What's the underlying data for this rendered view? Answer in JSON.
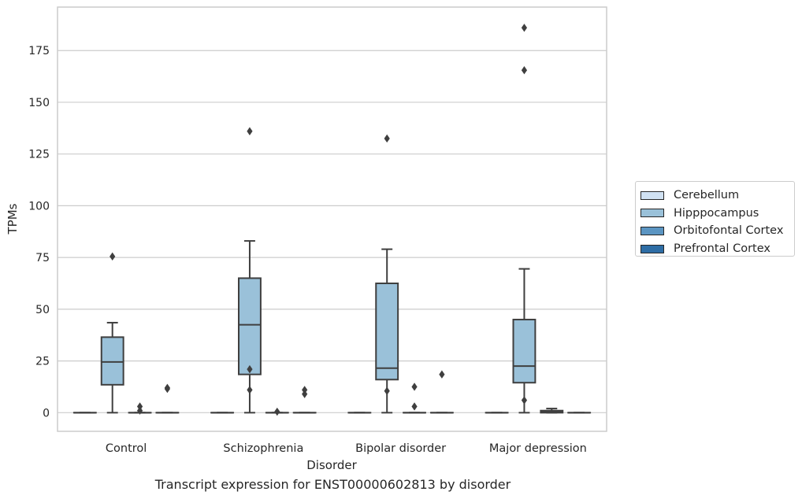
{
  "chart_data": {
    "type": "box",
    "xlabel": "Disorder",
    "ylabel": "TPMs",
    "caption": "Transcript expression for ENST00000602813 by disorder",
    "ylim": [
      -9,
      196
    ],
    "yticks": [
      0,
      25,
      50,
      75,
      100,
      125,
      150,
      175
    ],
    "grid": "horizontal",
    "legend_position": "right",
    "categories": [
      "Control",
      "Schizophrenia",
      "Bipolar disorder",
      "Major depression"
    ],
    "series": [
      {
        "name": "Cerebellum",
        "color": "#d0e1f2",
        "boxes": [
          {
            "q1": 0,
            "median": 0,
            "q3": 0,
            "whisker_low": 0,
            "whisker_high": 0,
            "outliers": []
          },
          {
            "q1": 0,
            "median": 0,
            "q3": 0,
            "whisker_low": 0,
            "whisker_high": 0,
            "outliers": []
          },
          {
            "q1": 0,
            "median": 0,
            "q3": 0,
            "whisker_low": 0,
            "whisker_high": 0,
            "outliers": []
          },
          {
            "q1": 0,
            "median": 0,
            "q3": 0,
            "whisker_low": 0,
            "whisker_high": 0,
            "outliers": []
          }
        ]
      },
      {
        "name": "Hipppocampus",
        "color": "#9ac1d9",
        "boxes": [
          {
            "q1": 13.5,
            "median": 24.5,
            "q3": 36.5,
            "whisker_low": 0,
            "whisker_high": 43.5,
            "outliers": [
              75.5
            ]
          },
          {
            "q1": 18.5,
            "median": 42.5,
            "q3": 65,
            "whisker_low": 0,
            "whisker_high": 83,
            "outliers": [
              21,
              11,
              136
            ]
          },
          {
            "q1": 16,
            "median": 21.5,
            "q3": 62.5,
            "whisker_low": 0,
            "whisker_high": 79,
            "outliers": [
              10.5,
              132.5
            ]
          },
          {
            "q1": 14.5,
            "median": 22.5,
            "q3": 45,
            "whisker_low": 0,
            "whisker_high": 69.5,
            "outliers": [
              6,
              165.5,
              186
            ]
          }
        ]
      },
      {
        "name": "Orbitofontal Cortex",
        "color": "#5b95c2",
        "boxes": [
          {
            "q1": 0,
            "median": 0,
            "q3": 0,
            "whisker_low": 0,
            "whisker_high": 0,
            "outliers": [
              3,
              1
            ]
          },
          {
            "q1": 0,
            "median": 0,
            "q3": 0,
            "whisker_low": 0,
            "whisker_high": 0,
            "outliers": [
              0.5
            ]
          },
          {
            "q1": 0,
            "median": 0,
            "q3": 0,
            "whisker_low": 0,
            "whisker_high": 0,
            "outliers": [
              12.5,
              3
            ]
          },
          {
            "q1": 0,
            "median": 0.5,
            "q3": 1,
            "whisker_low": 0,
            "whisker_high": 2,
            "outliers": []
          }
        ]
      },
      {
        "name": "Prefrontal Cortex",
        "color": "#2e6da5",
        "boxes": [
          {
            "q1": 0,
            "median": 0,
            "q3": 0,
            "whisker_low": 0,
            "whisker_high": 0,
            "outliers": [
              12,
              11.5
            ]
          },
          {
            "q1": 0,
            "median": 0,
            "q3": 0,
            "whisker_low": 0,
            "whisker_high": 0,
            "outliers": [
              11,
              9
            ]
          },
          {
            "q1": 0,
            "median": 0,
            "q3": 0,
            "whisker_low": 0,
            "whisker_high": 0,
            "outliers": [
              18.5
            ]
          },
          {
            "q1": 0,
            "median": 0,
            "q3": 0,
            "whisker_low": 0,
            "whisker_high": 0,
            "outliers": []
          }
        ]
      }
    ]
  }
}
